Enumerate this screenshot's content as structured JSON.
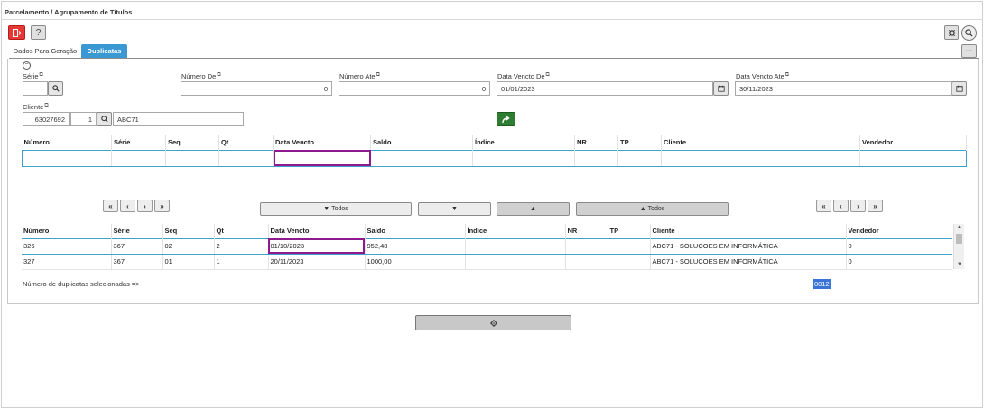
{
  "window": {
    "title": "Parcelamento / Agrupamento de Títulos"
  },
  "toolbar": {
    "exit_icon": "exit-icon",
    "help_label": "?",
    "settings_icon": "gear-icon",
    "search_icon": "search-icon",
    "more_label": "···"
  },
  "tabs": [
    {
      "label": "Dados Para Geração",
      "active": false
    },
    {
      "label": "Duplicatas",
      "active": true
    }
  ],
  "filters": {
    "collapse_label": "−",
    "serie": {
      "label": "Série",
      "value": ""
    },
    "numero_de": {
      "label": "Número De",
      "value": "0"
    },
    "numero_ate": {
      "label": "Número Ate",
      "value": "0"
    },
    "data_vencto_de": {
      "label": "Data Vencto De",
      "value": "01/01/2023"
    },
    "data_vencto_ate": {
      "label": "Data Vencto Ate",
      "value": "30/11/2023"
    },
    "cliente": {
      "label": "Cliente",
      "code": "63027692",
      "seq": "1",
      "name": "ABC71"
    }
  },
  "top_table": {
    "columns": [
      "Número",
      "Série",
      "Seq",
      "Qt",
      "Data Vencto",
      "Saldo",
      "Índice",
      "NR",
      "TP",
      "Cliente",
      "Vendedor"
    ]
  },
  "controls": {
    "first": "«",
    "prev": "‹",
    "next": "›",
    "last": "»",
    "select_all": "Todos",
    "unselect_all": "Todos"
  },
  "bottom_table": {
    "columns": [
      "Número",
      "Série",
      "Seq",
      "Qt",
      "Data Vencto",
      "Saldo",
      "Índice",
      "NR",
      "TP",
      "Cliente",
      "Vendedor"
    ],
    "rows": [
      [
        "326",
        "367",
        "02",
        "2",
        "01/10/2023",
        "952,48",
        "",
        "",
        "",
        "ABC71 - SOLUÇOES EM INFORMÁTICA",
        "0"
      ],
      [
        "327",
        "367",
        "01",
        "1",
        "20/11/2023",
        "1000,00",
        "",
        "",
        "",
        "ABC71 - SOLUÇOES EM INFORMÁTICA",
        "0"
      ]
    ]
  },
  "footer": {
    "count_label": "Número de duplicatas selecionadas =>",
    "count_value": "0012"
  },
  "colors": {
    "accent": "#3a98d3",
    "danger": "#e53935",
    "go": "#2e7d32",
    "focus": "#8e1a8e"
  }
}
